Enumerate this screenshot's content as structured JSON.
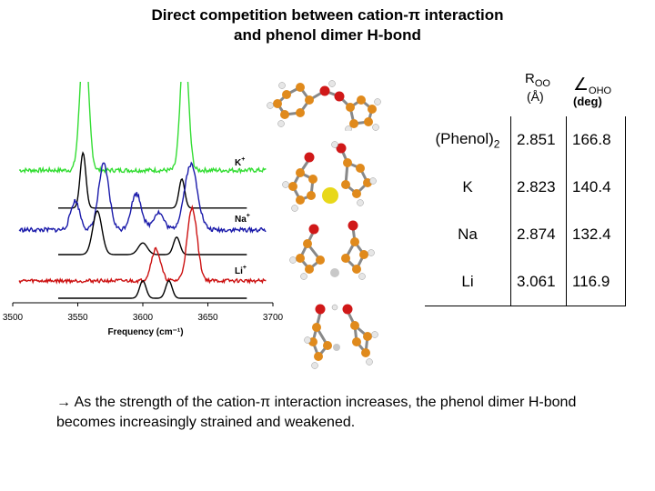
{
  "slide": {
    "title_line1": "Direct competition between cation-π interaction",
    "title_line2": "and phenol dimer H-bond",
    "footnote_arrow": "→",
    "footnote": "As the strength of the cation-π interaction increases, the phenol dimer H-bond becomes increasingly strained and weakened."
  },
  "table": {
    "col1_header": "R",
    "col1_header_sub": "OO",
    "col1_unit": "(Å)",
    "col2_symbol": "∠",
    "col2_header_sub": "OHO",
    "col2_unit": "(deg)",
    "rows": [
      {
        "label": "(Phenol)",
        "label_sub": "2",
        "roo": "2.851",
        "angle": "166.8"
      },
      {
        "label": "K",
        "label_sub": "",
        "roo": "2.823",
        "angle": "140.4"
      },
      {
        "label": "Na",
        "label_sub": "",
        "roo": "2.874",
        "angle": "132.4"
      },
      {
        "label": "Li",
        "label_sub": "",
        "roo": "3.061",
        "angle": "116.9"
      }
    ]
  },
  "chart_data": {
    "type": "line",
    "xlabel": "Frequency (cm⁻¹)",
    "xlim": [
      3500,
      3700
    ],
    "x_ticks": [
      "3500",
      "3550",
      "3600",
      "3650",
      "3700"
    ],
    "trace_labels": [
      {
        "ion": "K",
        "charge": "+"
      },
      {
        "ion": "Na",
        "charge": "+"
      },
      {
        "ion": "Li",
        "charge": "+"
      }
    ],
    "series": [
      {
        "color": "#33dd33",
        "baseline": 0.88,
        "peaks": [
          [
            3555,
            3.2,
            0.95
          ],
          [
            3632,
            3.0,
            0.9
          ]
        ],
        "noise": 0.03
      },
      {
        "color": "#000000",
        "baseline": 0.62,
        "peaks": [
          [
            3554,
            2.2,
            0.38
          ],
          [
            3630,
            2.2,
            0.2
          ]
        ],
        "noise": 0.0
      },
      {
        "color": "#1a1aaa",
        "baseline": 0.47,
        "peaks": [
          [
            3548,
            3.5,
            0.2
          ],
          [
            3570,
            4.0,
            0.45
          ],
          [
            3595,
            4.0,
            0.25
          ],
          [
            3612,
            4.0,
            0.12
          ],
          [
            3637,
            5.0,
            0.45
          ]
        ],
        "noise": 0.03
      },
      {
        "color": "#000000",
        "baseline": 0.3,
        "peaks": [
          [
            3565,
            3.5,
            0.3
          ],
          [
            3600,
            3.5,
            0.08
          ],
          [
            3626,
            2.5,
            0.12
          ]
        ],
        "noise": 0.0
      },
      {
        "color": "#cc1111",
        "baseline": 0.12,
        "peaks": [
          [
            3610,
            3.5,
            0.22
          ],
          [
            3638,
            3.8,
            0.5
          ]
        ],
        "noise": 0.025
      },
      {
        "color": "#000000",
        "baseline": 0.0,
        "peaks": [
          [
            3600,
            2.5,
            0.12
          ],
          [
            3620,
            2.5,
            0.12
          ]
        ],
        "noise": 0.0
      }
    ]
  }
}
